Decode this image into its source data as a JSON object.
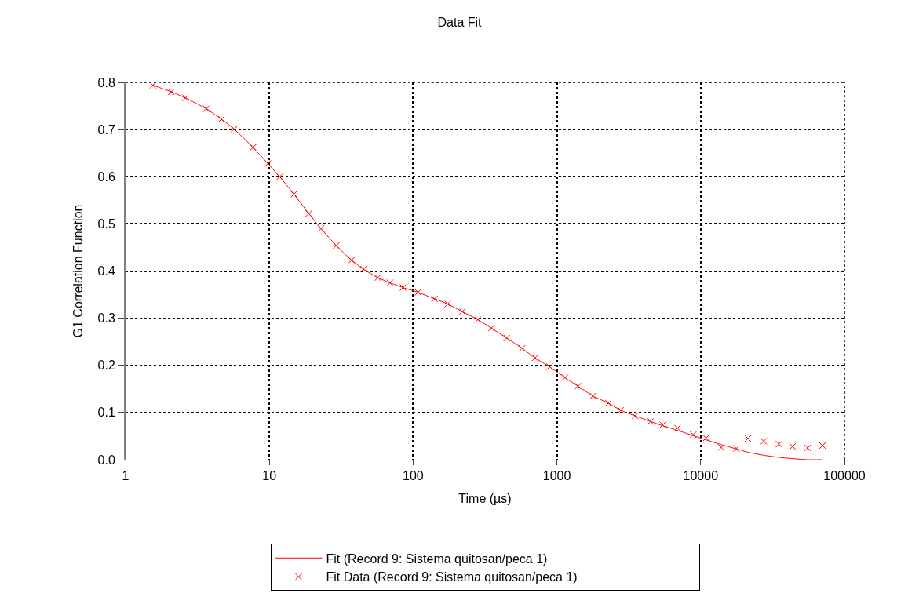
{
  "chart_data": {
    "type": "scatter",
    "title": "Data Fit",
    "xlabel": "Time (µs)",
    "ylabel": "G1 Correlation Function",
    "log": "x",
    "xlim": [
      1,
      100000
    ],
    "xticks": [
      1,
      10,
      100,
      1000,
      10000,
      100000
    ],
    "ylim": [
      0,
      0.8
    ],
    "yticks": [
      {
        "value": 0,
        "label": "0.0"
      },
      0.1,
      0.2,
      0.3,
      0.4,
      0.5,
      0.6,
      0.7,
      0.8
    ],
    "grid": true,
    "legend": "bottom",
    "series": [
      {
        "name": "Fit (Record 9: Sistema quitosan/peca 1)",
        "type": "line",
        "color": "#ff0000",
        "line_style": "solid",
        "marker": "none",
        "x": [
          1.55,
          2.08,
          2.61,
          3.64,
          4.64,
          5.69,
          7.7,
          9.76,
          11.8,
          14.8,
          18.8,
          22.9,
          29.2,
          37.3,
          45.2,
          56.8,
          69,
          85,
          108,
          141,
          174,
          220,
          282,
          350,
          448,
          573,
          704,
          890,
          1140,
          1400,
          1780,
          2280,
          2780,
          3500,
          4480,
          5450,
          6900,
          8880,
          10900,
          13900,
          17700,
          22000,
          28000,
          35000,
          45000,
          55000,
          70000
        ],
        "values": [
          0.794,
          0.78,
          0.767,
          0.744,
          0.722,
          0.701,
          0.662,
          0.628,
          0.6,
          0.563,
          0.522,
          0.49,
          0.454,
          0.423,
          0.404,
          0.386,
          0.375,
          0.365,
          0.355,
          0.341,
          0.33,
          0.314,
          0.297,
          0.279,
          0.258,
          0.236,
          0.216,
          0.197,
          0.174,
          0.156,
          0.135,
          0.12,
          0.105,
          0.093,
          0.081,
          0.072,
          0.062,
          0.051,
          0.042,
          0.032,
          0.023,
          0.015,
          0.009,
          0.005,
          0.002,
          0.0,
          0.0
        ]
      },
      {
        "name": "Fit Data (Record 9: Sistema quitosan/peca 1)",
        "color": "#ff0000",
        "marker": "cross",
        "x": [
          1.55,
          2.08,
          2.61,
          3.64,
          4.64,
          5.69,
          7.7,
          9.76,
          11.8,
          14.8,
          18.8,
          22.9,
          29.2,
          37.3,
          45.2,
          56.8,
          69,
          85,
          108,
          141,
          174,
          220,
          282,
          350,
          448,
          573,
          704,
          890,
          1140,
          1400,
          1780,
          2280,
          2780,
          3500,
          4480,
          5450,
          6900,
          8880,
          10900,
          13900,
          17700,
          21300,
          27400,
          35000,
          43600,
          55500,
          70400
        ],
        "values": [
          0.794,
          0.78,
          0.767,
          0.744,
          0.722,
          0.701,
          0.662,
          0.628,
          0.6,
          0.563,
          0.522,
          0.49,
          0.454,
          0.423,
          0.404,
          0.386,
          0.375,
          0.365,
          0.355,
          0.341,
          0.33,
          0.314,
          0.297,
          0.279,
          0.258,
          0.236,
          0.216,
          0.197,
          0.174,
          0.156,
          0.135,
          0.12,
          0.105,
          0.093,
          0.081,
          0.074,
          0.067,
          0.053,
          0.046,
          0.026,
          0.024,
          0.045,
          0.039,
          0.033,
          0.028,
          0.025,
          0.03
        ]
      }
    ]
  }
}
